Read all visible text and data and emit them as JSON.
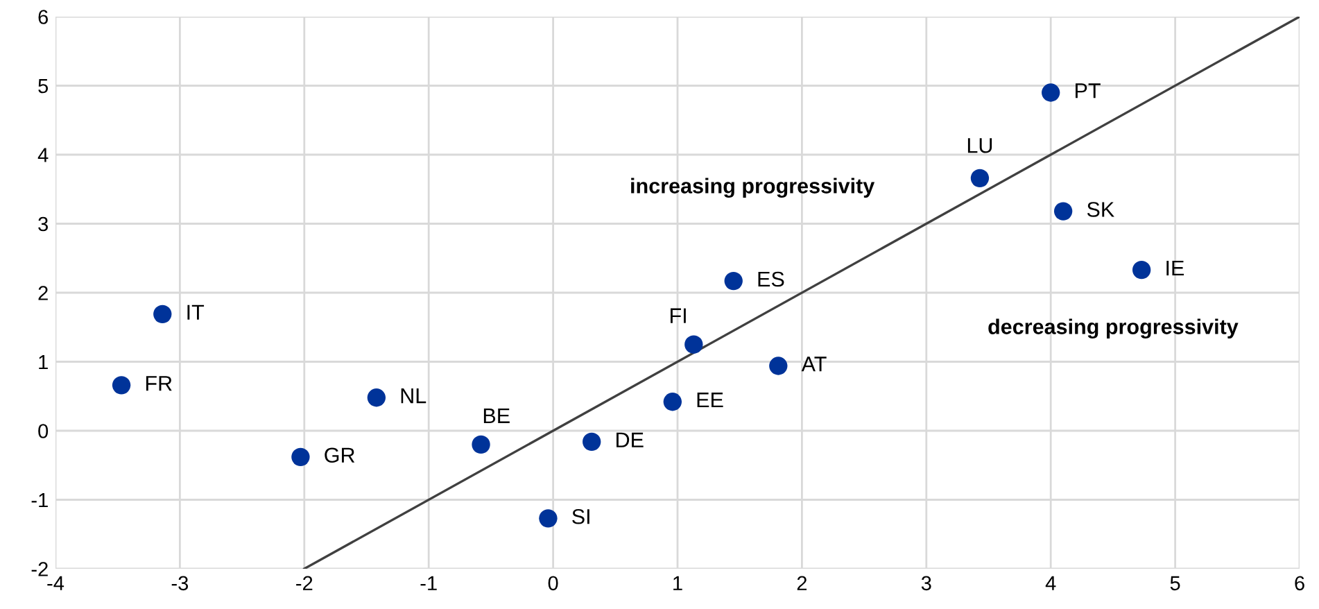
{
  "chart_data": {
    "type": "scatter",
    "xlim": [
      -4,
      6
    ],
    "ylim": [
      -2,
      6
    ],
    "xticks": [
      -4,
      -3,
      -2,
      -1,
      0,
      1,
      2,
      3,
      4,
      5,
      6
    ],
    "yticks": [
      -2,
      -1,
      0,
      1,
      2,
      3,
      4,
      5,
      6
    ],
    "grid": true,
    "series": [
      {
        "marker": "circle",
        "color": "#003399",
        "x": [
          -3.14,
          -3.47,
          -1.42,
          -2.03,
          -0.58,
          -0.04,
          0.31,
          0.96,
          1.13,
          1.45,
          1.81,
          3.43,
          4.0,
          4.1,
          4.73
        ],
        "values": [
          1.69,
          0.66,
          0.48,
          -0.38,
          -0.2,
          -1.27,
          -0.16,
          0.42,
          1.25,
          2.17,
          0.94,
          3.66,
          4.9,
          3.18,
          2.33
        ]
      },
      {
        "type": "line",
        "color": "#404040",
        "x": [
          -2,
          6
        ],
        "values": [
          -2,
          6
        ]
      }
    ],
    "annotations": [
      {
        "text": "IT",
        "x": -3.14,
        "y": 1.69
      },
      {
        "text": "FR",
        "x": -3.47,
        "y": 0.66
      },
      {
        "text": "NL",
        "x": -1.42,
        "y": 0.48
      },
      {
        "text": "GR",
        "x": -2.03,
        "y": -0.38
      },
      {
        "text": "BE",
        "x": -0.58,
        "y": -0.2
      },
      {
        "text": "SI",
        "x": -0.04,
        "y": -1.27
      },
      {
        "text": "DE",
        "x": 0.31,
        "y": -0.16
      },
      {
        "text": "EE",
        "x": 0.96,
        "y": 0.42
      },
      {
        "text": "FI",
        "x": 1.13,
        "y": 1.25
      },
      {
        "text": "ES",
        "x": 1.45,
        "y": 2.17
      },
      {
        "text": "AT",
        "x": 1.81,
        "y": 0.94
      },
      {
        "text": "LU",
        "x": 3.43,
        "y": 3.66
      },
      {
        "text": "PT",
        "x": 4.0,
        "y": 4.9
      },
      {
        "text": "SK",
        "x": 4.1,
        "y": 3.18
      },
      {
        "text": "IE",
        "x": 4.73,
        "y": 2.33
      },
      "increasing progressivity",
      "decreasing progressivity"
    ]
  }
}
